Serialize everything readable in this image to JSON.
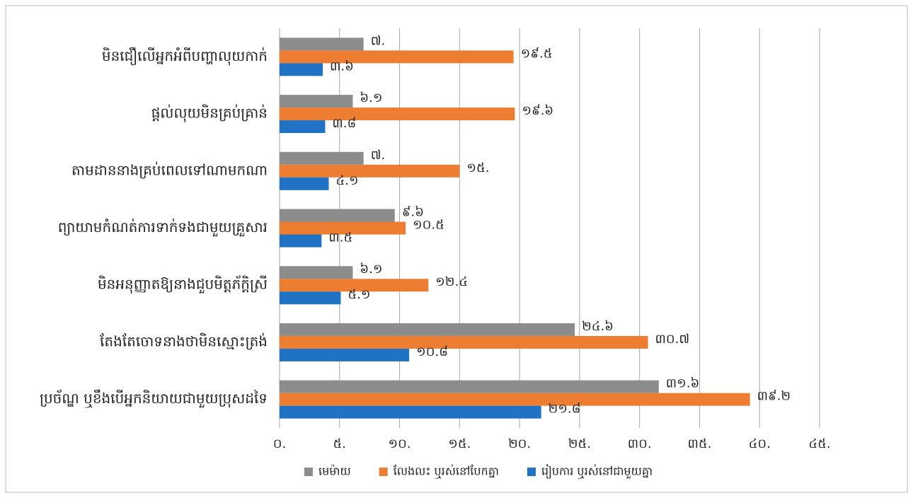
{
  "chart_data": {
    "type": "barh",
    "categories": [
      "មិនជឿលើអ្នកអំពីបញ្ហាលុយកាក់",
      "ផ្តល់លុយមិនគ្រប់គ្រាន់",
      "តាមដាននាងគ្រប់ពេលទៅណាមកណា",
      "ព្យាយាមកំណត់ការទាក់ទងជាមួយគ្រួសារ",
      "មិនអនុញ្ញាតឱ្យនាងជួបមិត្តភ័ក្តិស្រី",
      "តែងតែចោទនាងថាមិនស្មោះត្រង់",
      "ប្រច័ណ្ឌ ឬខឹងបើអ្នកនិយាយជាមួយប្រុសដទៃ"
    ],
    "series": [
      {
        "name": "មេម៉ាយ",
        "color": "#8c8c8c",
        "values": [
          7,
          6.1,
          7,
          9.6,
          6.1,
          24.6,
          31.6
        ],
        "value_labels": [
          "៧.",
          "៦.១",
          "៧.",
          "៩.៦",
          "៦.១",
          "២៤.៦",
          "៣១.៦"
        ]
      },
      {
        "name": "លែងលះ ឬរស់នៅបែកគ្នា",
        "color": "#ed7d31",
        "values": [
          19.5,
          19.6,
          15,
          10.5,
          12.4,
          30.7,
          39.2
        ],
        "value_labels": [
          "១៩.៥",
          "១៩.៦",
          "១៥.",
          "១០.៥",
          "១២.៤",
          "៣០.៧",
          "៣៩.២"
        ]
      },
      {
        "name": "រៀបការ ឬរស់នៅជាមួយគ្នា",
        "color": "#1f72c4",
        "values": [
          3.6,
          3.8,
          4.1,
          3.5,
          5.1,
          10.8,
          21.8
        ],
        "value_labels": [
          "៣.៦",
          "៣.៨",
          "៤.១",
          "៣.៥",
          "៥.១",
          "១០.៨",
          "២១.៨"
        ]
      }
    ],
    "xlim": [
      0,
      45
    ],
    "xticks": [
      {
        "value": 0,
        "label": "០."
      },
      {
        "value": 5,
        "label": "៥."
      },
      {
        "value": 10,
        "label": "១០."
      },
      {
        "value": 15,
        "label": "១៥."
      },
      {
        "value": 20,
        "label": "២០."
      },
      {
        "value": 25,
        "label": "២៥."
      },
      {
        "value": 30,
        "label": "៣០."
      },
      {
        "value": 35,
        "label": "៣៥."
      },
      {
        "value": 40,
        "label": "៤០."
      },
      {
        "value": 45,
        "label": "៤៥."
      }
    ],
    "grid": true,
    "legend": "bottom"
  }
}
